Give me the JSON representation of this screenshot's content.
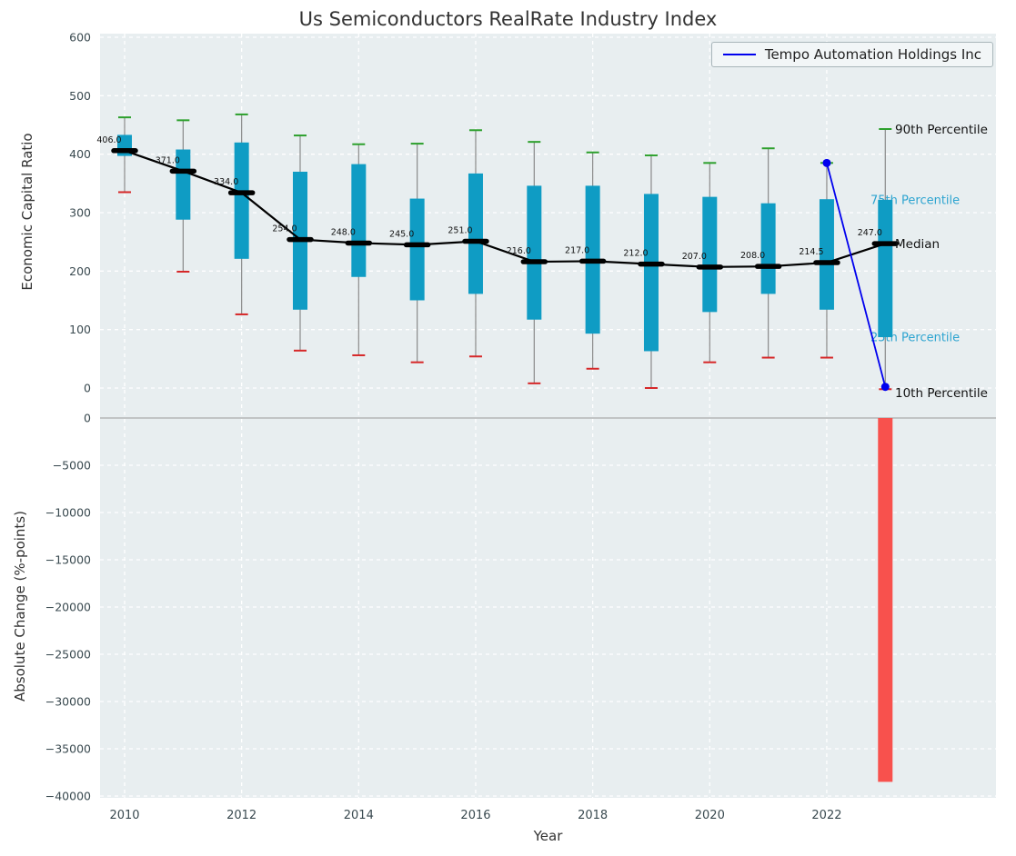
{
  "colors": {
    "figure_bg": "#ffffff",
    "axes_bg": "#e8eef0",
    "grid": "#ffffff",
    "box_fill": "#0f9cc4",
    "median": "#000000",
    "whisker": "#8a8a8a",
    "cap_high": "#2ca02c",
    "cap_low": "#d62728",
    "company_line": "#0000ee",
    "negative_bar": "#f8514d",
    "tick_text": "#3a4a50",
    "text": "#333333",
    "annotation_black": "#111111",
    "annotation_cyan": "#2da4d0"
  },
  "chart_data": [
    {
      "type": "boxplot",
      "title": "Us Semiconductors RealRate Industry Index",
      "xlabel": "Year",
      "ylabel": "Economic Capital Ratio",
      "ylim": [
        0,
        600
      ],
      "yticks": [
        0,
        100,
        200,
        300,
        400,
        500,
        600
      ],
      "ytick_labels": [
        "0",
        "100",
        "200",
        "300",
        "400",
        "500",
        "600"
      ],
      "xticks": [
        2010,
        2012,
        2014,
        2016,
        2018,
        2020,
        2022
      ],
      "xtick_labels": [
        "2010",
        "2012",
        "2014",
        "2016",
        "2018",
        "2020",
        "2022"
      ],
      "grid": "white dashed, on",
      "legend_position": "upper right",
      "boxes": [
        {
          "year": 2010,
          "p10": 335,
          "p25": 397,
          "median": 406,
          "p75": 433,
          "p90": 463,
          "label": "406.0"
        },
        {
          "year": 2011,
          "p10": 199,
          "p25": 288,
          "median": 371,
          "p75": 408,
          "p90": 458,
          "label": "371.0"
        },
        {
          "year": 2012,
          "p10": 126,
          "p25": 221,
          "median": 334,
          "p75": 420,
          "p90": 468,
          "label": "334.0"
        },
        {
          "year": 2013,
          "p10": 64,
          "p25": 134,
          "median": 254,
          "p75": 370,
          "p90": 432,
          "label": "254.0"
        },
        {
          "year": 2014,
          "p10": 56,
          "p25": 190,
          "median": 248,
          "p75": 383,
          "p90": 417,
          "label": "248.0"
        },
        {
          "year": 2015,
          "p10": 44,
          "p25": 150,
          "median": 245,
          "p75": 324,
          "p90": 418,
          "label": "245.0"
        },
        {
          "year": 2016,
          "p10": 54,
          "p25": 161,
          "median": 251,
          "p75": 367,
          "p90": 441,
          "label": "251.0"
        },
        {
          "year": 2017,
          "p10": 8,
          "p25": 117,
          "median": 216,
          "p75": 346,
          "p90": 421,
          "label": "216.0"
        },
        {
          "year": 2018,
          "p10": 33,
          "p25": 93,
          "median": 217,
          "p75": 346,
          "p90": 403,
          "label": "217.0"
        },
        {
          "year": 2019,
          "p10": 0,
          "p25": 63,
          "median": 212,
          "p75": 332,
          "p90": 398,
          "label": "212.0"
        },
        {
          "year": 2020,
          "p10": 44,
          "p25": 130,
          "median": 207,
          "p75": 327,
          "p90": 385,
          "label": "207.0"
        },
        {
          "year": 2021,
          "p10": 52,
          "p25": 161,
          "median": 208,
          "p75": 316,
          "p90": 410,
          "label": "208.0"
        },
        {
          "year": 2022,
          "p10": 52,
          "p25": 134,
          "median": 214.5,
          "p75": 323,
          "p90": 385,
          "label": "214.5"
        },
        {
          "year": 2023,
          "p10": -2,
          "p25": 87,
          "median": 247,
          "p75": 322,
          "p90": 443,
          "label": "247.0"
        }
      ],
      "company_series": {
        "name": "Tempo Automation Holdings Inc",
        "x": [
          2022,
          2023
        ],
        "y": [
          385,
          2
        ]
      },
      "annotations": [
        {
          "text": "90th Percentile",
          "y": 443,
          "style": "black"
        },
        {
          "text": "75th Percentile",
          "y": 322,
          "style": "cyan"
        },
        {
          "text": "Median",
          "y": 247,
          "style": "black"
        },
        {
          "text": "25th Percentile",
          "y": 87,
          "style": "cyan"
        },
        {
          "text": "10th Percentile",
          "y": -8,
          "style": "black"
        }
      ]
    },
    {
      "type": "bar",
      "ylabel": "Absolute Change (%-points)",
      "ylim": [
        -40000,
        0
      ],
      "yticks": [
        0,
        -5000,
        -10000,
        -15000,
        -20000,
        -25000,
        -30000,
        -35000,
        -40000
      ],
      "ytick_labels": [
        "0",
        "−5000",
        "−10000",
        "−15000",
        "−20000",
        "−25000",
        "−30000",
        "−35000",
        "−40000"
      ],
      "bars": [
        {
          "year": 2023,
          "value": -38500
        }
      ]
    }
  ]
}
